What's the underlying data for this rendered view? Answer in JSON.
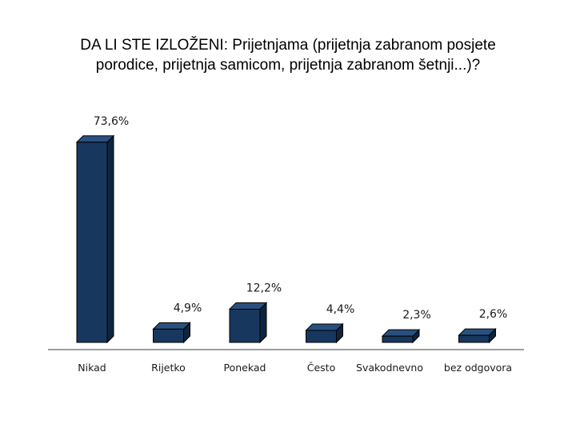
{
  "chart_data": {
    "type": "bar",
    "title_lines": [
      "DA LI STE IZLOŽENI: Prijetnjama (prijetnja zabranom posjete",
      "porodice, prijetnja samicom, prijetnja zabranom šetnji...)?"
    ],
    "categories": [
      "Nikad",
      "Rijetko",
      "Ponekad",
      "Često",
      "Svakodnevno",
      "bez odgovora"
    ],
    "values": [
      73.6,
      4.9,
      12.2,
      4.4,
      2.3,
      2.6
    ],
    "value_labels": [
      "73,6%",
      "4,9%",
      "12,2%",
      "4,4%",
      "2,3%",
      "2,6%"
    ],
    "ylim": [
      0,
      80
    ],
    "grid": false,
    "legend": "none",
    "colors": {
      "front": "#17375e",
      "side": "#0e2540",
      "top": "#2a5080",
      "edge": "#000000",
      "axis": "#7f7f7f"
    }
  }
}
